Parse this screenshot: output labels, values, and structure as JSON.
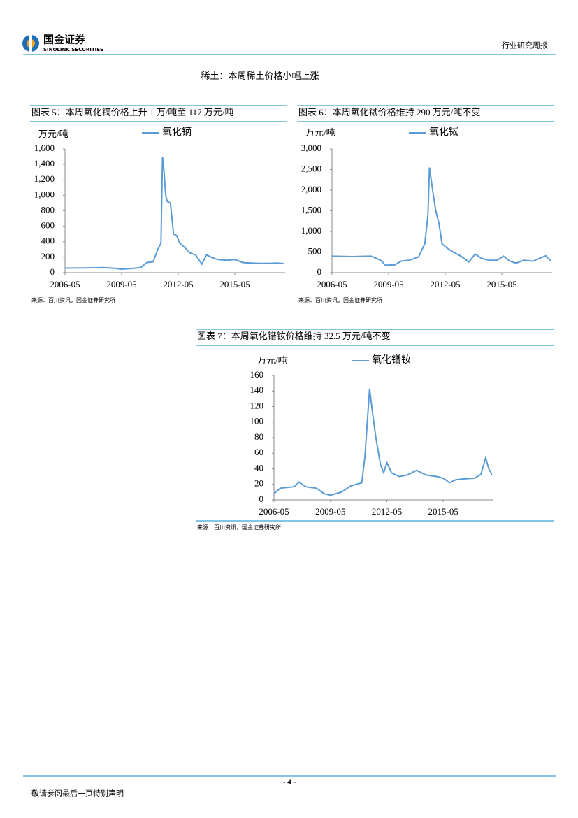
{
  "header": {
    "logo_cn": "国金证券",
    "logo_en": "SINOLINK SECURITIES",
    "report_type": "行业研究周报"
  },
  "section_title": "稀土：本周稀土价格小幅上涨",
  "chart_data": [
    {
      "type": "line",
      "title": "图表 5：本周氧化镝价格上升 1 万/吨至 117 万元/吨",
      "y_label": "万元/吨",
      "source": "来源：百川资讯，国金证券研究所",
      "x": [
        "2006-05",
        "2007-01",
        "2007-09",
        "2008-05",
        "2008-12",
        "2009-05",
        "2009-12",
        "2010-05",
        "2010-09",
        "2011-01",
        "2011-04",
        "2011-06",
        "2011-07",
        "2011-08",
        "2011-09",
        "2011-10",
        "2011-12",
        "2012-02",
        "2012-04",
        "2012-06",
        "2012-09",
        "2012-12",
        "2013-04",
        "2013-08",
        "2013-11",
        "2014-02",
        "2014-06",
        "2014-12",
        "2015-05",
        "2015-10",
        "2016-03",
        "2016-09",
        "2017-03",
        "2017-08",
        "2017-12"
      ],
      "series": [
        {
          "name": "氧化镝",
          "color": "#5b9bd5",
          "values": [
            60,
            60,
            62,
            65,
            58,
            45,
            55,
            65,
            130,
            140,
            300,
            380,
            1500,
            1300,
            1000,
            920,
            900,
            500,
            480,
            380,
            330,
            260,
            230,
            110,
            230,
            200,
            170,
            160,
            170,
            130,
            125,
            120,
            120,
            125,
            117
          ]
        }
      ],
      "xlim": [
        "2006-05",
        "2018-01"
      ],
      "xticks": [
        "2006-05",
        "2009-05",
        "2012-05",
        "2015-05"
      ],
      "ylim": [
        0,
        1600
      ],
      "yticks": [
        0,
        200,
        400,
        600,
        800,
        {
          "value": 1000,
          "label": "1,000"
        },
        {
          "value": 1200,
          "label": "1,200"
        },
        {
          "value": 1400,
          "label": "1,400"
        },
        {
          "value": 1600,
          "label": "1,600"
        }
      ],
      "grid": false
    },
    {
      "type": "line",
      "title": "图表 6：本周氧化铽价格维持 290 万元/吨不变",
      "y_label": "万元/吨",
      "source": "来源：百川资讯，国金证券研究所",
      "x": [
        "2006-05",
        "2007-06",
        "2008-06",
        "2008-12",
        "2009-03",
        "2009-09",
        "2010-01",
        "2010-06",
        "2010-12",
        "2011-04",
        "2011-06",
        "2011-07",
        "2011-09",
        "2011-11",
        "2012-01",
        "2012-03",
        "2012-06",
        "2012-10",
        "2013-03",
        "2013-08",
        "2013-12",
        "2014-04",
        "2014-09",
        "2015-02",
        "2015-06",
        "2015-10",
        "2016-02",
        "2016-07",
        "2017-01",
        "2017-05",
        "2017-09",
        "2017-12"
      ],
      "series": [
        {
          "name": "氧化铽",
          "color": "#5b9bd5",
          "values": [
            400,
            390,
            400,
            300,
            180,
            190,
            280,
            300,
            380,
            700,
            1400,
            2550,
            2000,
            1500,
            1200,
            700,
            600,
            500,
            400,
            260,
            450,
            350,
            300,
            300,
            400,
            280,
            230,
            300,
            280,
            350,
            410,
            290
          ]
        }
      ],
      "xlim": [
        "2006-05",
        "2018-01"
      ],
      "xticks": [
        "2006-05",
        "2009-05",
        "2012-05",
        "2015-05"
      ],
      "ylim": [
        0,
        3000
      ],
      "yticks": [
        0,
        500,
        {
          "value": 1000,
          "label": "1,000"
        },
        {
          "value": 1500,
          "label": "1,500"
        },
        {
          "value": 2000,
          "label": "2,000"
        },
        {
          "value": 2500,
          "label": "2,500"
        },
        {
          "value": 3000,
          "label": "3,000"
        }
      ],
      "grid": false
    },
    {
      "type": "line",
      "title": "图表 7：本周氧化镨钕价格维持 32.5 万元/吨不变",
      "y_label": "万元/吨",
      "source": "来源：百川资讯，国金证券研究所",
      "x": [
        "2006-05",
        "2006-09",
        "2007-06",
        "2007-09",
        "2008-01",
        "2008-08",
        "2009-01",
        "2009-05",
        "2009-12",
        "2010-06",
        "2011-01",
        "2011-03",
        "2011-06",
        "2011-08",
        "2011-10",
        "2012-01",
        "2012-03",
        "2012-05",
        "2012-08",
        "2013-01",
        "2013-06",
        "2013-12",
        "2014-06",
        "2015-01",
        "2015-05",
        "2015-09",
        "2016-01",
        "2016-06",
        "2017-01",
        "2017-05",
        "2017-08",
        "2017-10",
        "2017-12"
      ],
      "series": [
        {
          "name": "氧化镨钕",
          "color": "#5b9bd5",
          "values": [
            8,
            15,
            17,
            23,
            17,
            15,
            8,
            6,
            10,
            18,
            22,
            55,
            143,
            110,
            80,
            45,
            35,
            48,
            35,
            30,
            32,
            38,
            32,
            30,
            28,
            22,
            26,
            27,
            28,
            33,
            54,
            40,
            32.5
          ]
        }
      ],
      "xlim": [
        "2006-05",
        "2018-01"
      ],
      "xticks": [
        "2006-05",
        "2009-05",
        "2012-05",
        "2015-05"
      ],
      "ylim": [
        0,
        160
      ],
      "yticks": [
        0,
        20,
        40,
        60,
        80,
        100,
        120,
        140,
        160
      ],
      "grid": false
    }
  ],
  "footer": {
    "page": "- 4 -",
    "disclaimer": "敬请参阅最后一页特别声明"
  }
}
